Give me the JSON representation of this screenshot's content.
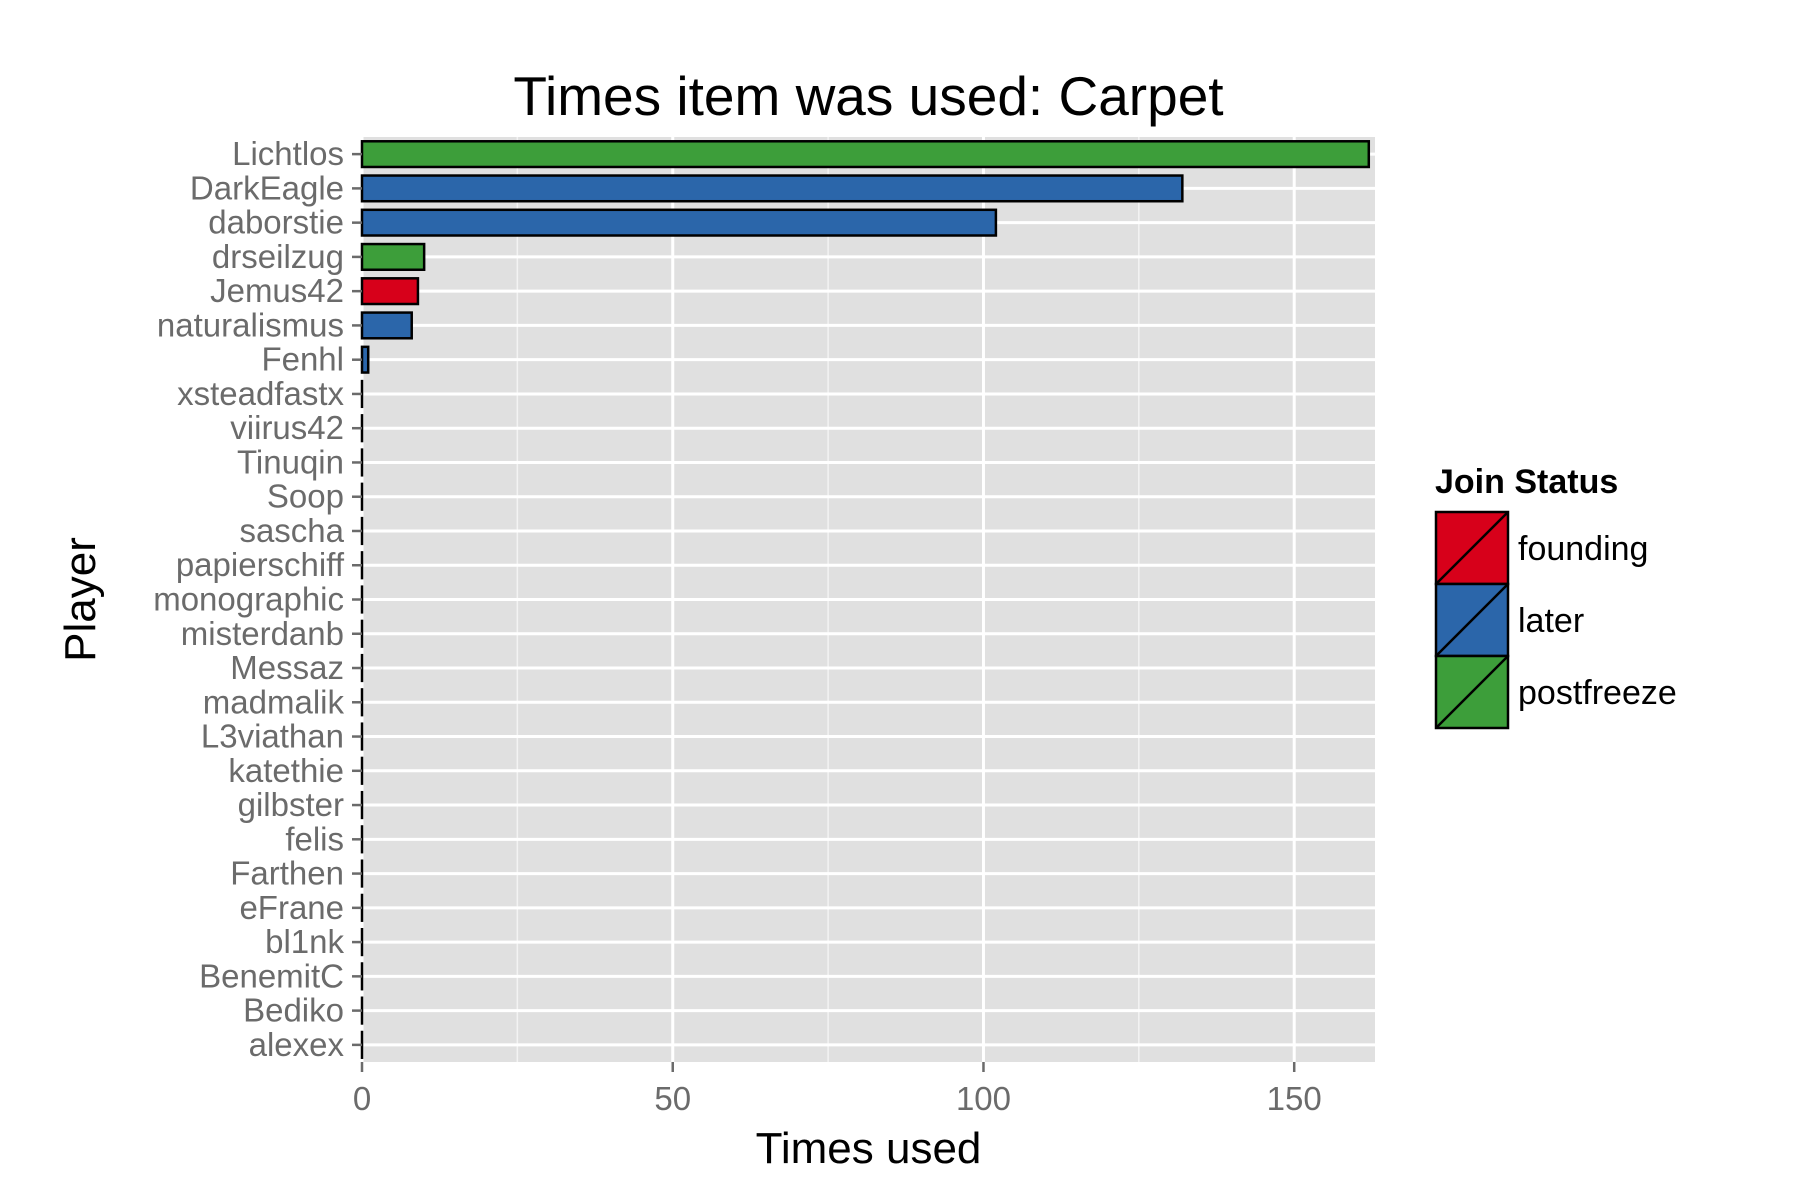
{
  "chart_data": {
    "type": "bar",
    "orientation": "horizontal",
    "title": "Times item was used: Carpet",
    "xlabel": "Times used",
    "ylabel": "Player",
    "xlim": [
      0,
      163
    ],
    "x_ticks": [
      0,
      50,
      100,
      150
    ],
    "grid": true,
    "legend": {
      "title": "Join Status",
      "position": "right",
      "entries": [
        {
          "label": "founding",
          "color": "#d7001a"
        },
        {
          "label": "later",
          "color": "#2b66aa"
        },
        {
          "label": "postfreeze",
          "color": "#3d9e3a"
        }
      ]
    },
    "categories": [
      "Lichtlos",
      "DarkEagle",
      "daborstie",
      "drseilzug",
      "Jemus42",
      "naturalismus",
      "Fenhl",
      "xsteadfastx",
      "viirus42",
      "Tinuqin",
      "Soop",
      "sascha",
      "papierschiff",
      "monographic",
      "misterdanb",
      "Messaz",
      "madmalik",
      "L3viathan",
      "katethie",
      "gilbster",
      "felis",
      "Farthen",
      "eFrane",
      "bl1nk",
      "BenemitC",
      "Bediko",
      "alexex"
    ],
    "values": [
      162,
      132,
      102,
      10,
      9,
      8,
      1,
      0,
      0,
      0,
      0,
      0,
      0,
      0,
      0,
      0,
      0,
      0,
      0,
      0,
      0,
      0,
      0,
      0,
      0,
      0,
      0
    ],
    "status": [
      "postfreeze",
      "later",
      "later",
      "postfreeze",
      "founding",
      "later",
      "later",
      null,
      null,
      null,
      null,
      null,
      null,
      null,
      null,
      null,
      null,
      null,
      null,
      null,
      null,
      null,
      null,
      null,
      null,
      null,
      null
    ]
  }
}
